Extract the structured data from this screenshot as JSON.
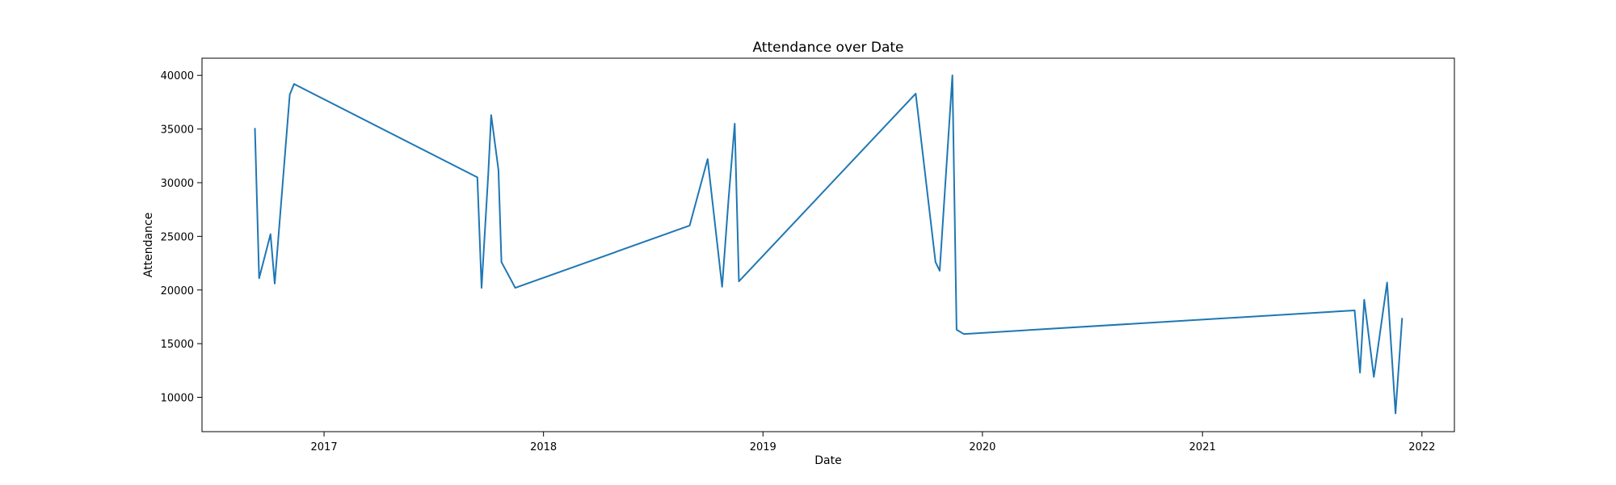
{
  "chart_data": {
    "type": "line",
    "title": "Attendance over Date",
    "xlabel": "Date",
    "ylabel": "Attendance",
    "x_axis_kind": "date",
    "xlim": [
      "2016-06-12",
      "2022-02-24"
    ],
    "ylim": [
      6800,
      41600
    ],
    "x_ticks": [
      "2017",
      "2018",
      "2019",
      "2020",
      "2021",
      "2022"
    ],
    "y_ticks": [
      10000,
      15000,
      20000,
      25000,
      30000,
      35000,
      40000
    ],
    "grid": false,
    "legend": "none",
    "series": [
      {
        "color": "#1f77b4",
        "x": [
          "2016-09-08",
          "2016-09-15",
          "2016-10-04",
          "2016-10-11",
          "2016-11-05",
          "2016-11-12",
          "2017-09-13",
          "2017-09-20",
          "2017-10-01",
          "2017-10-06",
          "2017-10-18",
          "2017-10-23",
          "2017-11-15",
          "2018-09-01",
          "2018-10-01",
          "2018-10-25",
          "2018-11-05",
          "2018-11-15",
          "2018-11-22",
          "2019-09-12",
          "2019-10-15",
          "2019-10-22",
          "2019-11-12",
          "2019-11-19",
          "2019-12-01",
          "2021-09-11",
          "2021-09-20",
          "2021-09-27",
          "2021-10-13",
          "2021-11-04",
          "2021-11-18",
          "2021-11-29"
        ],
        "y": [
          35100,
          21100,
          25200,
          20600,
          38200,
          39200,
          30500,
          20200,
          30700,
          36300,
          31200,
          22600,
          20200,
          26000,
          32200,
          20300,
          28600,
          35500,
          20800,
          38300,
          22600,
          21800,
          40000,
          16300,
          15900,
          18100,
          12300,
          19100,
          11900,
          20700,
          8500,
          17400
        ]
      }
    ]
  }
}
